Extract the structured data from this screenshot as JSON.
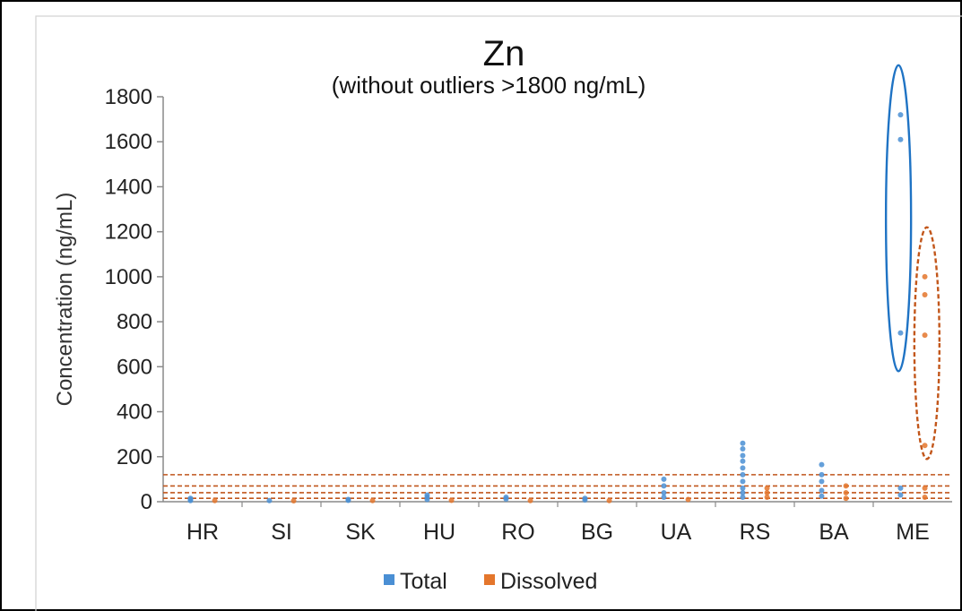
{
  "colors": {
    "total": "#4a8fd4",
    "dissolved": "#e4762c",
    "total_ellipse": "#1f73c4",
    "dissolved_ellipse": "#c2561a",
    "threshold_line": "#c0561c",
    "axis": "#8a8a8a"
  },
  "chart_data": {
    "type": "scatter",
    "title": "Zn",
    "subtitle": "(without outliers >1800 ng/mL)",
    "xlabel": "",
    "ylabel": "Concentration (ng/mL)",
    "ylim": [
      0,
      1800
    ],
    "yticks": [
      "0",
      "200",
      "400",
      "600",
      "800",
      "1000",
      "1200",
      "1400",
      "1600",
      "1800"
    ],
    "categories": [
      "HR",
      "SI",
      "SK",
      "HU",
      "RO",
      "BG",
      "UA",
      "RS",
      "BA",
      "ME"
    ],
    "grid": false,
    "legend_position": "bottom",
    "series": [
      {
        "name": "Total",
        "color_key": "total",
        "points": [
          {
            "x": "HR",
            "y": 10
          },
          {
            "x": "HR",
            "y": 15
          },
          {
            "x": "HR",
            "y": 5
          },
          {
            "x": "SI",
            "y": 5
          },
          {
            "x": "SK",
            "y": 10
          },
          {
            "x": "SK",
            "y": 6
          },
          {
            "x": "HU",
            "y": 30
          },
          {
            "x": "HU",
            "y": 20
          },
          {
            "x": "HU",
            "y": 10
          },
          {
            "x": "RO",
            "y": 20
          },
          {
            "x": "RO",
            "y": 12
          },
          {
            "x": "BG",
            "y": 15
          },
          {
            "x": "BG",
            "y": 8
          },
          {
            "x": "UA",
            "y": 100
          },
          {
            "x": "UA",
            "y": 70
          },
          {
            "x": "UA",
            "y": 40
          },
          {
            "x": "UA",
            "y": 20
          },
          {
            "x": "RS",
            "y": 260
          },
          {
            "x": "RS",
            "y": 235
          },
          {
            "x": "RS",
            "y": 205
          },
          {
            "x": "RS",
            "y": 180
          },
          {
            "x": "RS",
            "y": 150
          },
          {
            "x": "RS",
            "y": 120
          },
          {
            "x": "RS",
            "y": 90
          },
          {
            "x": "RS",
            "y": 60
          },
          {
            "x": "RS",
            "y": 40
          },
          {
            "x": "RS",
            "y": 20
          },
          {
            "x": "BA",
            "y": 165
          },
          {
            "x": "BA",
            "y": 120
          },
          {
            "x": "BA",
            "y": 90
          },
          {
            "x": "BA",
            "y": 50
          },
          {
            "x": "BA",
            "y": 25
          },
          {
            "x": "ME",
            "y": 1720
          },
          {
            "x": "ME",
            "y": 1610
          },
          {
            "x": "ME",
            "y": 750
          },
          {
            "x": "ME",
            "y": 60
          },
          {
            "x": "ME",
            "y": 30
          }
        ]
      },
      {
        "name": "Dissolved",
        "color_key": "dissolved",
        "points": [
          {
            "x": "HR",
            "y": 5
          },
          {
            "x": "SI",
            "y": 4
          },
          {
            "x": "SK",
            "y": 5
          },
          {
            "x": "HU",
            "y": 6
          },
          {
            "x": "RO",
            "y": 5
          },
          {
            "x": "BG",
            "y": 5
          },
          {
            "x": "UA",
            "y": 10
          },
          {
            "x": "RS",
            "y": 60
          },
          {
            "x": "RS",
            "y": 40
          },
          {
            "x": "RS",
            "y": 20
          },
          {
            "x": "BA",
            "y": 70
          },
          {
            "x": "BA",
            "y": 40
          },
          {
            "x": "BA",
            "y": 15
          },
          {
            "x": "ME",
            "y": 1000
          },
          {
            "x": "ME",
            "y": 920
          },
          {
            "x": "ME",
            "y": 740
          },
          {
            "x": "ME",
            "y": 250
          },
          {
            "x": "ME",
            "y": 60
          },
          {
            "x": "ME",
            "y": 20
          }
        ]
      }
    ],
    "threshold_lines": [
      120,
      70,
      40,
      15
    ],
    "ellipses": [
      {
        "color_key": "total_ellipse",
        "category": "ME",
        "offset": -0.3,
        "y_min": 580,
        "y_max": 1940,
        "dashed": false
      },
      {
        "color_key": "dissolved_ellipse",
        "category": "ME",
        "offset": 0.3,
        "y_min": 190,
        "y_max": 1220,
        "dashed": true
      }
    ],
    "legend": [
      {
        "label": "Total",
        "color_key": "total"
      },
      {
        "label": "Dissolved",
        "color_key": "dissolved"
      }
    ]
  }
}
